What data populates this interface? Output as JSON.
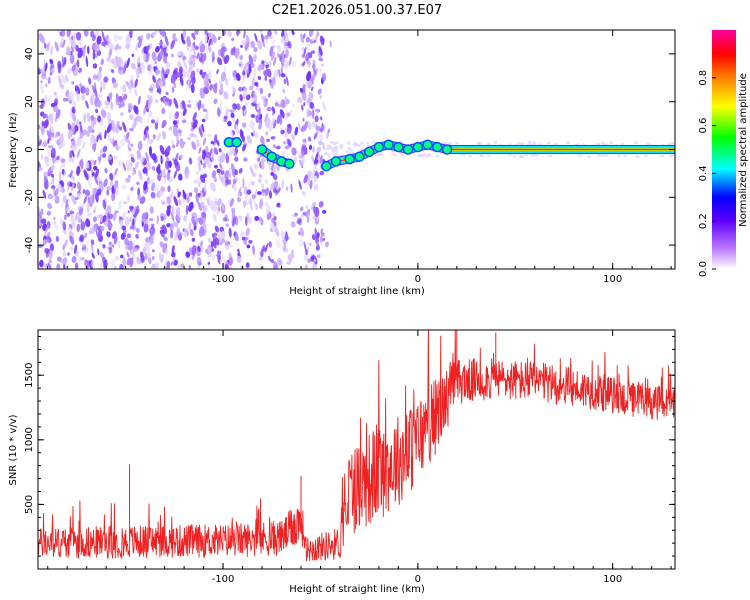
{
  "title": "C2E1.2026.051.00.37.E07",
  "chart_data": [
    {
      "type": "heatmap",
      "xlabel": "Height of straight line (km)",
      "ylabel": "Frequency (Hz)",
      "xlim": [
        -195,
        132
      ],
      "ylim": [
        -50,
        50
      ],
      "xticks": [
        -100,
        0,
        100
      ],
      "yticks": [
        -40,
        -20,
        0,
        20,
        40
      ],
      "noise_region_x": [
        -195,
        -48
      ],
      "signal_trace": [
        {
          "x": -97,
          "y": 3
        },
        {
          "x": -93,
          "y": 3
        },
        {
          "x": -80,
          "y": 0
        },
        {
          "x": -75,
          "y": -3
        },
        {
          "x": -70,
          "y": -5
        },
        {
          "x": -66,
          "y": -6
        },
        {
          "x": -47,
          "y": -7
        },
        {
          "x": -42,
          "y": -5
        },
        {
          "x": -35,
          "y": -4
        },
        {
          "x": -30,
          "y": -3
        },
        {
          "x": -25,
          "y": -1
        },
        {
          "x": -20,
          "y": 1
        },
        {
          "x": -15,
          "y": 2
        },
        {
          "x": -10,
          "y": 1
        },
        {
          "x": -5,
          "y": 0
        },
        {
          "x": 0,
          "y": 1
        },
        {
          "x": 5,
          "y": 2
        },
        {
          "x": 10,
          "y": 1
        },
        {
          "x": 15,
          "y": 0
        },
        {
          "x": 50,
          "y": 0
        },
        {
          "x": 100,
          "y": 0
        },
        {
          "x": 132,
          "y": 0
        }
      ],
      "colorbar": {
        "label": "Normalized spectral amplitude",
        "range": [
          0,
          1
        ],
        "ticks": [
          "0.0",
          "0.2",
          "0.4",
          "0.6",
          "0.8"
        ],
        "colors": [
          "#ffffff",
          "#8000ff",
          "#0000ff",
          "#00ffff",
          "#00ff00",
          "#ffff00",
          "#ff8000",
          "#ff0000",
          "#ff00a0"
        ]
      }
    },
    {
      "type": "line",
      "xlabel": "Height of straight line (km)",
      "ylabel": "SNR (10 * v/v)",
      "xlim": [
        -195,
        132
      ],
      "ylim": [
        0,
        1850
      ],
      "xticks": [
        -100,
        0,
        100
      ],
      "yticks": [
        500,
        1000,
        1500
      ],
      "series": [
        {
          "name": "SNR",
          "color": "#ee2222",
          "envelope": [
            {
              "x": -195,
              "base": 200,
              "amp": 120
            },
            {
              "x": -150,
              "base": 210,
              "amp": 130
            },
            {
              "x": -100,
              "base": 220,
              "amp": 130
            },
            {
              "x": -70,
              "base": 240,
              "amp": 140
            },
            {
              "x": -60,
              "base": 380,
              "amp": 180
            },
            {
              "x": -57,
              "base": 150,
              "amp": 100
            },
            {
              "x": -40,
              "base": 200,
              "amp": 130
            },
            {
              "x": -35,
              "base": 600,
              "amp": 350
            },
            {
              "x": -20,
              "base": 750,
              "amp": 380
            },
            {
              "x": -5,
              "base": 900,
              "amp": 350
            },
            {
              "x": 10,
              "base": 1200,
              "amp": 300
            },
            {
              "x": 20,
              "base": 1450,
              "amp": 180
            },
            {
              "x": 40,
              "base": 1470,
              "amp": 160
            },
            {
              "x": 60,
              "base": 1450,
              "amp": 160
            },
            {
              "x": 90,
              "base": 1380,
              "amp": 150
            },
            {
              "x": 110,
              "base": 1310,
              "amp": 140
            },
            {
              "x": 132,
              "base": 1270,
              "amp": 130
            }
          ],
          "spikes": [
            {
              "x": -148,
              "y": 810
            },
            {
              "x": -60,
              "y": 720
            },
            {
              "x": 20,
              "y": 1850
            },
            {
              "x": 40,
              "y": 1830
            }
          ]
        }
      ]
    }
  ]
}
